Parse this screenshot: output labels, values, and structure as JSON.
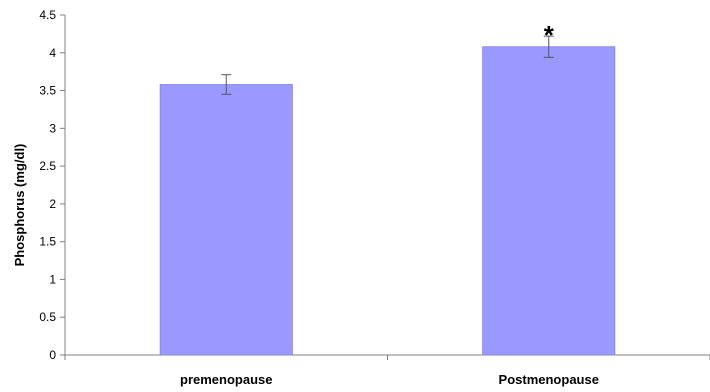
{
  "chart_data": {
    "type": "bar",
    "title": "",
    "xlabel": "",
    "ylabel": "Phosphorus (mg/dl)",
    "ylim": [
      0,
      4.5
    ],
    "yticks": [
      "0",
      "0.5",
      "1",
      "1.5",
      "2",
      "2.5",
      "3",
      "3.5",
      "4",
      "4.5"
    ],
    "categories": [
      "premenopause",
      "Postmenopause"
    ],
    "values": [
      3.58,
      4.08
    ],
    "errors": [
      0.13,
      0.14
    ],
    "annotations": [
      "",
      "*"
    ],
    "grid": false,
    "legend": "none",
    "bar_color": "#9999ff",
    "bar_edge_color": "#8080e0",
    "axis_color": "#808080"
  }
}
